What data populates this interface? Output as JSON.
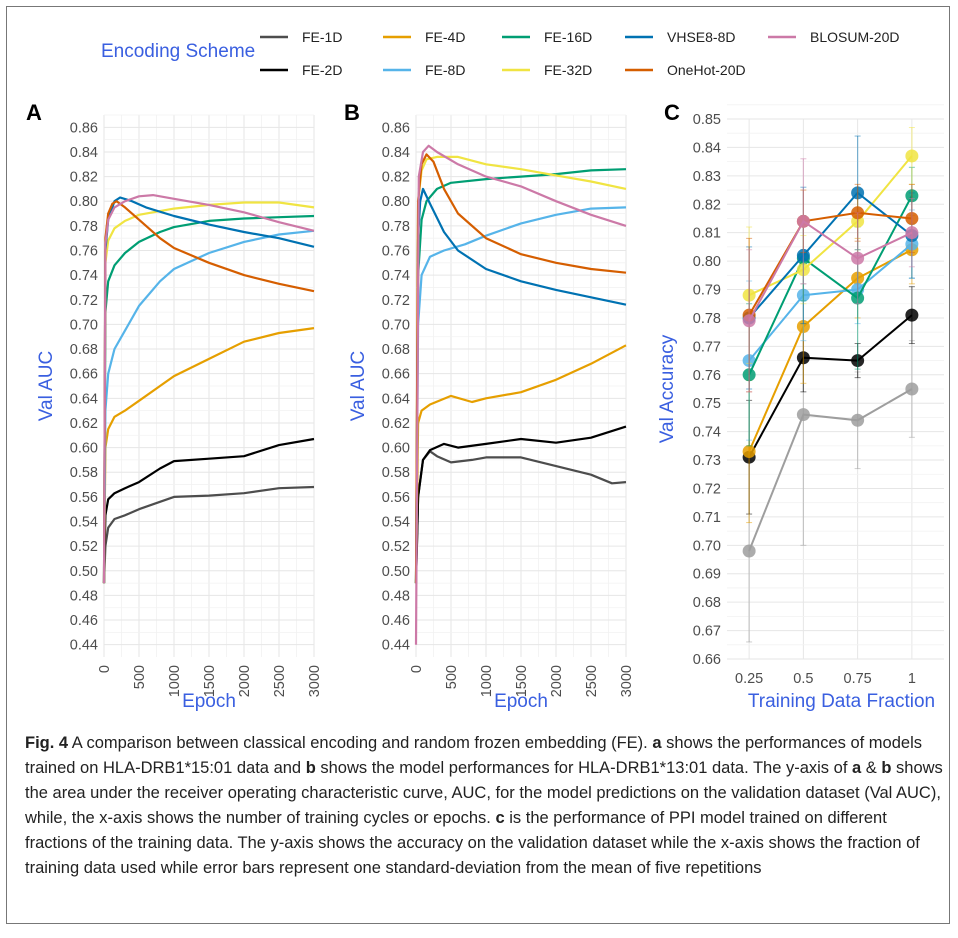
{
  "legend": {
    "title": "Encoding Scheme",
    "items": [
      {
        "label": "FE-1D",
        "color": "#4d4d4d"
      },
      {
        "label": "FE-4D",
        "color": "#e69f00"
      },
      {
        "label": "FE-16D",
        "color": "#009e73"
      },
      {
        "label": "VHSE8-8D",
        "color": "#0072b2"
      },
      {
        "label": "BLOSUM-20D",
        "color": "#cc79a7"
      },
      {
        "label": "FE-2D",
        "color": "#000000"
      },
      {
        "label": "FE-8D",
        "color": "#56b4e9"
      },
      {
        "label": "FE-32D",
        "color": "#f0e442"
      },
      {
        "label": "OneHot-20D",
        "color": "#d55e00"
      }
    ]
  },
  "caption": {
    "fig_label": "Fig. 4",
    "t1": " A comparison between classical encoding and random frozen embedding (FE). ",
    "a": "a",
    "t2": " shows the performances of models trained on HLA-DRB1*15:01 data and ",
    "b": "b",
    "t3": " shows the model performances for HLA-DRB1*13:01 data. The y-axis of ",
    "a2": "a",
    "t4": " & ",
    "b2": "b",
    "t5": " shows the area under the receiver operating characteristic curve, AUC, for the model predictions on the validation dataset (Val AUC), while, the x-axis shows the number of training cycles or epochs. ",
    "c": "c",
    "t6": " is the performance of PPI model trained on different fractions of the training data. The y-axis shows the accuracy on the validation dataset while the x-axis shows the fraction of training data used while error bars represent one standard-deviation from the mean of five repetitions"
  },
  "chart_data": [
    {
      "panel": "A",
      "type": "line",
      "xlabel": "Epoch",
      "ylabel": "Val AUC",
      "xlim": [
        0,
        3000
      ],
      "ylim": [
        0.43,
        0.87
      ],
      "xticks": [
        0,
        500,
        1000,
        1500,
        2000,
        2500,
        3000
      ],
      "yticks": [
        0.44,
        0.46,
        0.48,
        0.5,
        0.52,
        0.54,
        0.56,
        0.58,
        0.6,
        0.62,
        0.64,
        0.66,
        0.68,
        0.7,
        0.72,
        0.74,
        0.76,
        0.78,
        0.8,
        0.82,
        0.84,
        0.86
      ],
      "series": [
        {
          "name": "FE-1D",
          "color": "#4d4d4d",
          "x": [
            0,
            20,
            60,
            150,
            300,
            500,
            800,
            1000,
            1500,
            2000,
            2500,
            3000
          ],
          "y": [
            0.49,
            0.52,
            0.535,
            0.542,
            0.545,
            0.55,
            0.556,
            0.56,
            0.561,
            0.563,
            0.567,
            0.568
          ]
        },
        {
          "name": "FE-2D",
          "color": "#000000",
          "x": [
            0,
            20,
            60,
            150,
            300,
            500,
            800,
            1000,
            1500,
            2000,
            2500,
            3000
          ],
          "y": [
            0.49,
            0.545,
            0.558,
            0.563,
            0.567,
            0.572,
            0.583,
            0.589,
            0.591,
            0.593,
            0.602,
            0.607
          ]
        },
        {
          "name": "FE-4D",
          "color": "#e69f00",
          "x": [
            0,
            20,
            60,
            150,
            300,
            500,
            800,
            1000,
            1500,
            2000,
            2500,
            3000
          ],
          "y": [
            0.49,
            0.6,
            0.615,
            0.625,
            0.63,
            0.638,
            0.65,
            0.658,
            0.672,
            0.686,
            0.693,
            0.697
          ]
        },
        {
          "name": "FE-8D",
          "color": "#56b4e9",
          "x": [
            0,
            20,
            60,
            150,
            300,
            500,
            800,
            1000,
            1500,
            2000,
            2500,
            3000
          ],
          "y": [
            0.49,
            0.63,
            0.66,
            0.68,
            0.695,
            0.715,
            0.735,
            0.745,
            0.758,
            0.767,
            0.773,
            0.776
          ]
        },
        {
          "name": "FE-16D",
          "color": "#009e73",
          "x": [
            0,
            20,
            60,
            150,
            300,
            500,
            800,
            1000,
            1500,
            2000,
            2500,
            3000
          ],
          "y": [
            0.49,
            0.71,
            0.735,
            0.748,
            0.758,
            0.767,
            0.775,
            0.779,
            0.784,
            0.786,
            0.787,
            0.788
          ]
        },
        {
          "name": "FE-32D",
          "color": "#f0e442",
          "x": [
            0,
            20,
            60,
            150,
            300,
            500,
            800,
            1000,
            1500,
            2000,
            2500,
            3000
          ],
          "y": [
            0.49,
            0.75,
            0.768,
            0.778,
            0.784,
            0.789,
            0.792,
            0.794,
            0.797,
            0.799,
            0.799,
            0.795
          ]
        },
        {
          "name": "VHSE8-8D",
          "color": "#0072b2",
          "x": [
            0,
            20,
            60,
            150,
            230,
            400,
            600,
            1000,
            1500,
            2000,
            2500,
            3000
          ],
          "y": [
            0.49,
            0.76,
            0.785,
            0.8,
            0.803,
            0.8,
            0.795,
            0.788,
            0.781,
            0.775,
            0.77,
            0.763
          ]
        },
        {
          "name": "OneHot-20D",
          "color": "#d55e00",
          "x": [
            0,
            20,
            60,
            120,
            180,
            300,
            500,
            800,
            1000,
            1500,
            2000,
            2500,
            3000
          ],
          "y": [
            0.49,
            0.77,
            0.79,
            0.798,
            0.8,
            0.795,
            0.785,
            0.77,
            0.762,
            0.75,
            0.74,
            0.733,
            0.727
          ]
        },
        {
          "name": "BLOSUM-20D",
          "color": "#cc79a7",
          "x": [
            0,
            20,
            60,
            150,
            300,
            500,
            700,
            1000,
            1500,
            2000,
            2500,
            3000
          ],
          "y": [
            0.49,
            0.765,
            0.785,
            0.795,
            0.8,
            0.804,
            0.805,
            0.802,
            0.797,
            0.791,
            0.783,
            0.776
          ]
        }
      ]
    },
    {
      "panel": "B",
      "type": "line",
      "xlabel": "Epoch",
      "ylabel": "Val AUC",
      "xlim": [
        0,
        3000
      ],
      "ylim": [
        0.43,
        0.87
      ],
      "xticks": [
        0,
        500,
        1000,
        1500,
        2000,
        2500,
        3000
      ],
      "yticks": [
        0.44,
        0.46,
        0.48,
        0.5,
        0.52,
        0.54,
        0.56,
        0.58,
        0.6,
        0.62,
        0.64,
        0.66,
        0.68,
        0.7,
        0.72,
        0.74,
        0.76,
        0.78,
        0.8,
        0.82,
        0.84,
        0.86
      ],
      "series": [
        {
          "name": "FE-1D",
          "color": "#4d4d4d",
          "x": [
            0,
            30,
            100,
            200,
            300,
            500,
            800,
            1000,
            1500,
            2000,
            2500,
            2800,
            3000
          ],
          "y": [
            0.49,
            0.56,
            0.59,
            0.597,
            0.593,
            0.588,
            0.59,
            0.592,
            0.592,
            0.585,
            0.578,
            0.571,
            0.572
          ]
        },
        {
          "name": "FE-2D",
          "color": "#000000",
          "x": [
            0,
            30,
            100,
            200,
            400,
            600,
            1000,
            1500,
            2000,
            2500,
            3000
          ],
          "y": [
            0.49,
            0.56,
            0.59,
            0.598,
            0.603,
            0.6,
            0.603,
            0.607,
            0.604,
            0.608,
            0.617
          ]
        },
        {
          "name": "FE-4D",
          "color": "#e69f00",
          "x": [
            0,
            30,
            80,
            200,
            500,
            800,
            1000,
            1500,
            2000,
            2500,
            3000
          ],
          "y": [
            0.49,
            0.62,
            0.63,
            0.635,
            0.642,
            0.637,
            0.64,
            0.645,
            0.655,
            0.668,
            0.683
          ]
        },
        {
          "name": "FE-8D",
          "color": "#56b4e9",
          "x": [
            0,
            30,
            80,
            200,
            400,
            700,
            1000,
            1500,
            2000,
            2500,
            3000
          ],
          "y": [
            0.49,
            0.7,
            0.74,
            0.755,
            0.76,
            0.765,
            0.772,
            0.782,
            0.789,
            0.794,
            0.795
          ]
        },
        {
          "name": "FE-16D",
          "color": "#009e73",
          "x": [
            0,
            30,
            80,
            150,
            300,
            500,
            1000,
            1500,
            2000,
            2500,
            3000
          ],
          "y": [
            0.49,
            0.74,
            0.785,
            0.8,
            0.81,
            0.815,
            0.818,
            0.82,
            0.822,
            0.825,
            0.826
          ]
        },
        {
          "name": "FE-32D",
          "color": "#f0e442",
          "x": [
            0,
            30,
            80,
            150,
            300,
            600,
            1000,
            1500,
            2000,
            2500,
            3000
          ],
          "y": [
            0.49,
            0.8,
            0.825,
            0.834,
            0.836,
            0.836,
            0.83,
            0.826,
            0.821,
            0.816,
            0.81
          ]
        },
        {
          "name": "VHSE8-8D",
          "color": "#0072b2",
          "x": [
            0,
            30,
            60,
            100,
            200,
            400,
            600,
            1000,
            1500,
            2000,
            2500,
            3000
          ],
          "y": [
            0.49,
            0.77,
            0.8,
            0.81,
            0.798,
            0.775,
            0.76,
            0.745,
            0.735,
            0.728,
            0.722,
            0.716
          ]
        },
        {
          "name": "OneHot-20D",
          "color": "#d55e00",
          "x": [
            0,
            30,
            80,
            150,
            250,
            400,
            600,
            1000,
            1500,
            2000,
            2500,
            3000
          ],
          "y": [
            0.49,
            0.8,
            0.83,
            0.838,
            0.832,
            0.81,
            0.79,
            0.77,
            0.757,
            0.75,
            0.745,
            0.742
          ]
        },
        {
          "name": "BLOSUM-20D",
          "color": "#cc79a7",
          "x": [
            0,
            40,
            100,
            180,
            300,
            600,
            1000,
            1500,
            2000,
            2500,
            3000
          ],
          "y": [
            0.44,
            0.82,
            0.84,
            0.845,
            0.84,
            0.83,
            0.82,
            0.812,
            0.8,
            0.789,
            0.78
          ]
        }
      ]
    },
    {
      "panel": "C",
      "type": "line",
      "xlabel": "Training Data Fraction",
      "ylabel": "Val Accuracy",
      "categories": [
        "0.25",
        "0.5",
        "0.75",
        "1"
      ],
      "ylim": [
        0.66,
        0.85
      ],
      "yticks": [
        0.66,
        0.67,
        0.68,
        0.69,
        0.7,
        0.71,
        0.72,
        0.73,
        0.74,
        0.75,
        0.76,
        0.77,
        0.78,
        0.79,
        0.8,
        0.81,
        0.82,
        0.83,
        0.84,
        0.85
      ],
      "series": [
        {
          "name": "FE-1D",
          "color": "#9e9e9e",
          "values": [
            0.698,
            0.746,
            0.744,
            0.755
          ],
          "err": [
            0.032,
            0.046,
            0.017,
            0.017
          ]
        },
        {
          "name": "FE-2D",
          "color": "#000000",
          "values": [
            0.731,
            0.766,
            0.765,
            0.781
          ],
          "err": [
            0.02,
            0.012,
            0.006,
            0.01
          ]
        },
        {
          "name": "FE-4D",
          "color": "#e69f00",
          "values": [
            0.733,
            0.777,
            0.794,
            0.804
          ],
          "err": [
            0.025,
            0.02,
            0.014,
            0.012
          ]
        },
        {
          "name": "FE-8D",
          "color": "#56b4e9",
          "values": [
            0.765,
            0.788,
            0.79,
            0.806
          ],
          "err": [
            0.028,
            0.016,
            0.012,
            0.012
          ]
        },
        {
          "name": "FE-16D",
          "color": "#009e73",
          "values": [
            0.76,
            0.801,
            0.787,
            0.823
          ],
          "err": [
            0.025,
            0.015,
            0.025,
            0.01
          ]
        },
        {
          "name": "FE-32D",
          "color": "#f0e442",
          "values": [
            0.788,
            0.797,
            0.814,
            0.837
          ],
          "err": [
            0.024,
            0.012,
            0.01,
            0.01
          ]
        },
        {
          "name": "VHSE8-8D",
          "color": "#0072b2",
          "values": [
            0.78,
            0.802,
            0.824,
            0.809
          ],
          "err": [
            0.025,
            0.024,
            0.02,
            0.015
          ]
        },
        {
          "name": "OneHot-20D",
          "color": "#d55e00",
          "values": [
            0.781,
            0.814,
            0.817,
            0.815
          ],
          "err": [
            0.027,
            0.011,
            0.01,
            0.012
          ]
        },
        {
          "name": "BLOSUM-20D",
          "color": "#cc79a7",
          "values": [
            0.779,
            0.814,
            0.801,
            0.81
          ],
          "err": [
            0.025,
            0.022,
            0.016,
            0.012
          ]
        }
      ]
    }
  ]
}
